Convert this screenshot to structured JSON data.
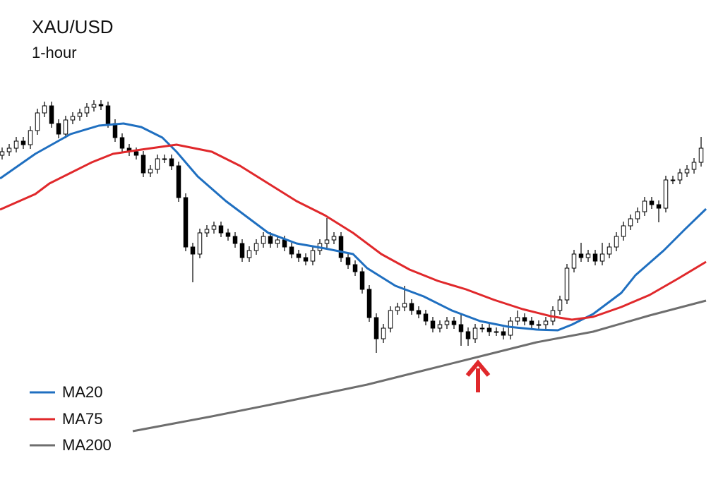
{
  "chart_data": {
    "type": "candlestick",
    "title": "XAU/USD",
    "subtitle": "1-hour",
    "xlim": [
      -0.3,
      99.7
    ],
    "ylim": [
      0,
      683
    ],
    "up_color": "#ffffff",
    "down_color": "#000000",
    "legend": "lower left",
    "candles": {
      "open": [
        463,
        468,
        473,
        483,
        478,
        498,
        523,
        533,
        508,
        493,
        513,
        518,
        523,
        531,
        535,
        533,
        508,
        488,
        473,
        468,
        463,
        438,
        443,
        458,
        458,
        448,
        403,
        333,
        323,
        353,
        358,
        363,
        353,
        348,
        338,
        318,
        328,
        338,
        348,
        338,
        343,
        333,
        323,
        318,
        313,
        328,
        338,
        343,
        348,
        318,
        308,
        298,
        273,
        233,
        203,
        218,
        243,
        248,
        253,
        243,
        238,
        228,
        218,
        223,
        228,
        223,
        213,
        203,
        218,
        218,
        213,
        213,
        208,
        228,
        233,
        228,
        223,
        223,
        228,
        243,
        258,
        303,
        323,
        318,
        323,
        313,
        323,
        333,
        348,
        363,
        373,
        383,
        398,
        393,
        388,
        428,
        428,
        438,
        443,
        453
      ],
      "high": [
        474,
        479,
        489,
        489,
        504,
        529,
        539,
        539,
        514,
        519,
        524,
        529,
        537,
        541,
        541,
        539,
        514,
        494,
        479,
        474,
        469,
        449,
        464,
        464,
        464,
        454,
        409,
        339,
        359,
        364,
        369,
        369,
        359,
        354,
        344,
        334,
        344,
        354,
        354,
        349,
        349,
        339,
        329,
        324,
        334,
        344,
        374,
        354,
        354,
        324,
        314,
        304,
        279,
        239,
        224,
        249,
        254,
        278,
        259,
        249,
        244,
        234,
        229,
        234,
        234,
        239,
        219,
        224,
        224,
        224,
        219,
        219,
        234,
        243,
        239,
        234,
        229,
        234,
        249,
        264,
        309,
        329,
        339,
        329,
        329,
        339,
        339,
        354,
        369,
        379,
        389,
        404,
        404,
        399,
        434,
        434,
        444,
        449,
        459,
        489
      ],
      "low": [
        457,
        462,
        467,
        472,
        472,
        492,
        517,
        502,
        487,
        487,
        507,
        512,
        517,
        525,
        527,
        502,
        482,
        467,
        462,
        457,
        432,
        432,
        437,
        452,
        442,
        397,
        327,
        283,
        317,
        347,
        352,
        347,
        342,
        332,
        312,
        312,
        322,
        332,
        332,
        332,
        327,
        317,
        312,
        307,
        307,
        322,
        332,
        337,
        312,
        302,
        292,
        267,
        227,
        183,
        197,
        212,
        237,
        242,
        237,
        232,
        222,
        212,
        212,
        217,
        217,
        193,
        193,
        197,
        212,
        207,
        207,
        202,
        202,
        222,
        222,
        217,
        217,
        217,
        222,
        237,
        252,
        297,
        312,
        312,
        307,
        307,
        317,
        327,
        342,
        357,
        367,
        377,
        387,
        368,
        382,
        422,
        422,
        432,
        437,
        447
      ],
      "close": [
        468,
        473,
        483,
        478,
        498,
        523,
        533,
        508,
        493,
        513,
        518,
        523,
        531,
        535,
        533,
        508,
        488,
        473,
        468,
        463,
        438,
        443,
        458,
        458,
        448,
        403,
        333,
        323,
        353,
        358,
        363,
        353,
        348,
        338,
        318,
        328,
        338,
        348,
        338,
        343,
        333,
        323,
        318,
        313,
        328,
        338,
        343,
        348,
        318,
        308,
        298,
        273,
        233,
        203,
        218,
        243,
        248,
        253,
        243,
        238,
        228,
        218,
        223,
        228,
        223,
        213,
        203,
        218,
        218,
        213,
        213,
        208,
        228,
        233,
        228,
        223,
        223,
        228,
        243,
        258,
        303,
        323,
        318,
        323,
        313,
        323,
        333,
        348,
        363,
        373,
        383,
        398,
        393,
        388,
        428,
        428,
        438,
        443,
        453,
        473
      ]
    },
    "series": [
      {
        "name": "MA20",
        "color": "#1f6fc0",
        "x": [
          -0.3,
          4.7,
          9.7,
          13.7,
          17.2,
          19.7,
          22.7,
          24.7,
          27.7,
          31.7,
          35.7,
          37.7,
          41.7,
          45.7,
          49.7,
          51.7,
          55.7,
          59.7,
          63.7,
          67.7,
          71.7,
          75.7,
          78.7,
          80.7,
          83.7,
          87.7,
          89.7,
          93.7,
          96.7,
          99.7
        ],
        "values": [
          430,
          465,
          493,
          505,
          508,
          503,
          488,
          468,
          433,
          398,
          368,
          353,
          338,
          331,
          323,
          303,
          278,
          263,
          243,
          228,
          220,
          216,
          215,
          223,
          238,
          268,
          293,
          328,
          358,
          387
        ]
      },
      {
        "name": "MA75",
        "color": "#e0282b",
        "x": [
          -0.3,
          4.7,
          6.7,
          9.7,
          12.7,
          15.7,
          19.7,
          24.7,
          29.7,
          33.7,
          37.7,
          41.7,
          45.7,
          49.7,
          53.7,
          57.7,
          61.7,
          65.7,
          69.7,
          73.7,
          77.7,
          80.7,
          83.7,
          87.7,
          91.7,
          95.7,
          99.7
        ],
        "values": [
          386,
          408,
          423,
          438,
          453,
          465,
          471,
          478,
          468,
          448,
          423,
          398,
          378,
          353,
          323,
          301,
          285,
          273,
          258,
          245,
          235,
          230,
          234,
          248,
          265,
          288,
          312
        ]
      },
      {
        "name": "MA200",
        "color": "#6e6e6e",
        "x": [
          18.5,
          29.7,
          39.7,
          51.7,
          59.7,
          67.7,
          75.7,
          83.7,
          91.7,
          99.7
        ],
        "values": [
          72,
          93,
          113,
          138,
          158,
          178,
          198,
          213,
          236,
          257
        ]
      }
    ]
  }
}
